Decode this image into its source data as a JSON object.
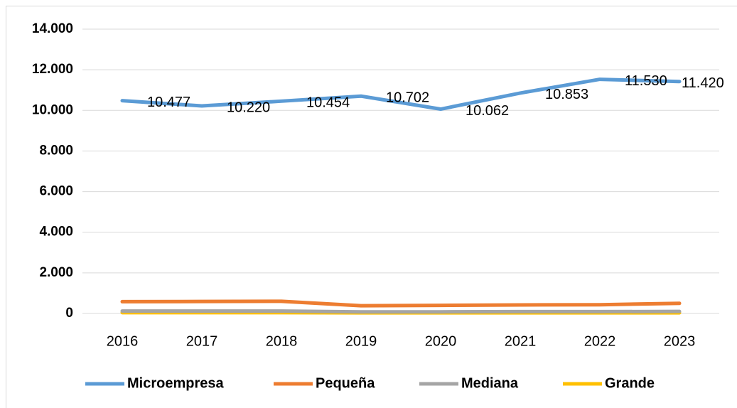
{
  "chart_data": {
    "type": "line",
    "categories": [
      "2016",
      "2017",
      "2018",
      "2019",
      "2020",
      "2021",
      "2022",
      "2023"
    ],
    "series": [
      {
        "name": "Microempresa",
        "color": "#5b9bd5",
        "values": [
          10477,
          10220,
          10454,
          10702,
          10062,
          10853,
          11530,
          11420
        ],
        "value_labels": [
          "10.477",
          "10.220",
          "10.454",
          "10.702",
          "10.062",
          "10.853",
          "11.530",
          "11.420"
        ]
      },
      {
        "name": "Pequeña",
        "color": "#ed7d31",
        "values": [
          580,
          590,
          600,
          380,
          400,
          420,
          430,
          500
        ]
      },
      {
        "name": "Mediana",
        "color": "#a5a5a5",
        "values": [
          120,
          120,
          120,
          80,
          80,
          90,
          90,
          100
        ]
      },
      {
        "name": "Grande",
        "color": "#ffc000",
        "values": [
          40,
          40,
          40,
          30,
          30,
          30,
          30,
          30
        ]
      }
    ],
    "ylim": [
      0,
      14000
    ],
    "yticks": [
      0,
      {
        "value": 2000,
        "label": "2.000"
      },
      {
        "value": 4000,
        "label": "4.000"
      },
      {
        "value": 6000,
        "label": "6.000"
      },
      {
        "value": 8000,
        "label": "8.000"
      },
      {
        "value": 10000,
        "label": "10.000"
      },
      {
        "value": 12000,
        "label": "12.000"
      },
      {
        "value": 14000,
        "label": "14.000"
      }
    ],
    "grid": true,
    "legend": "bottom"
  }
}
